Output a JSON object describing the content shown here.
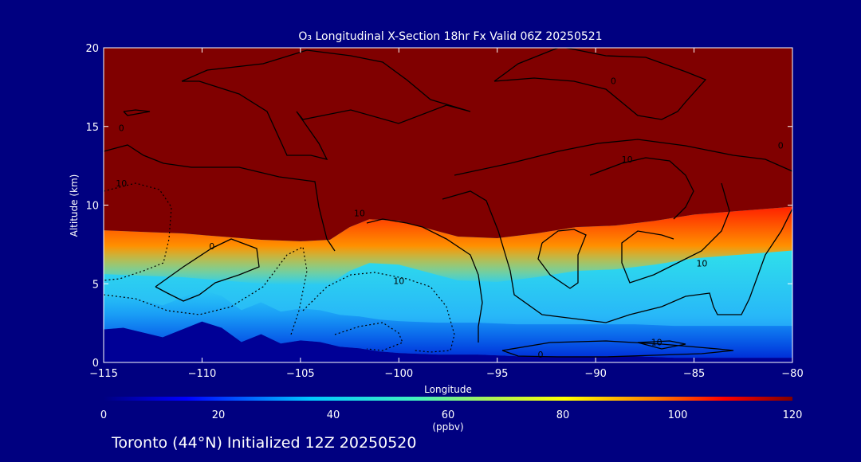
{
  "chart_data": {
    "type": "heatmap",
    "title": "O₃ Longitudinal X-Section 18hr  Fx Valid 06Z 20250521",
    "xlabel": "Longitude",
    "ylabel": "Altitude (km)",
    "xlim": [
      -115,
      -80
    ],
    "ylim": [
      0,
      20
    ],
    "x_ticks": [
      -115,
      -110,
      -105,
      -100,
      -95,
      -90,
      -85,
      -80
    ],
    "x_tick_labels": [
      "−115",
      "−110",
      "−105",
      "−100",
      "−95",
      "−90",
      "−85",
      "−80"
    ],
    "y_ticks": [
      0,
      5,
      10,
      15,
      20
    ],
    "y_tick_labels": [
      "0",
      "5",
      "10",
      "15",
      "20"
    ],
    "colorbar": {
      "min": 0,
      "max": 120,
      "unit": "(ppbv)",
      "ticks": [
        0,
        20,
        40,
        60,
        80,
        100,
        120
      ],
      "tick_labels": [
        "0",
        "20",
        "40",
        "60",
        "80",
        "100",
        "120"
      ]
    },
    "stratosphere_boundary": {
      "description_note": "",
      "x": [
        -115,
        -113,
        -111,
        -109,
        -107,
        -105,
        -103.5,
        -102.5,
        -101.5,
        -100,
        -98.5,
        -97,
        -95,
        -93,
        -91,
        -89,
        -87,
        -85,
        -83,
        -81,
        -80
      ],
      "y": [
        8.4,
        8.3,
        8.2,
        8.0,
        7.8,
        7.7,
        7.8,
        8.6,
        9.1,
        9.0,
        8.5,
        8.0,
        7.9,
        8.2,
        8.6,
        8.7,
        9.0,
        9.4,
        9.6,
        9.8,
        9.9
      ]
    },
    "surface_terrain": {
      "x": [
        -115,
        -114,
        -112,
        -110,
        -109,
        -108,
        -107,
        -106,
        -105,
        -104,
        -103,
        -102,
        -101,
        -100,
        -98,
        -96,
        -94,
        -92,
        -90,
        -88,
        -86,
        -84,
        -82,
        -80
      ],
      "y": [
        2.1,
        2.2,
        1.6,
        2.6,
        2.2,
        1.3,
        1.8,
        1.2,
        1.4,
        1.3,
        1.0,
        0.9,
        0.7,
        0.6,
        0.5,
        0.5,
        0.4,
        0.4,
        0.4,
        0.4,
        0.3,
        0.3,
        0.3,
        0.3
      ]
    },
    "contour_labels": [
      {
        "text": "0",
        "x": -114.1,
        "y": 14.7
      },
      {
        "text": "10",
        "x": -114.1,
        "y": 11.2
      },
      {
        "text": "0",
        "x": -109.5,
        "y": 7.2
      },
      {
        "text": "10",
        "x": -102,
        "y": 9.3
      },
      {
        "text": "10",
        "x": -100,
        "y": 5.0
      },
      {
        "text": "0",
        "x": -89.1,
        "y": 17.7
      },
      {
        "text": "10",
        "x": -88.4,
        "y": 12.7
      },
      {
        "text": "10",
        "x": -84.6,
        "y": 6.1
      },
      {
        "text": "10",
        "x": -86.9,
        "y": 1.1
      },
      {
        "text": "0",
        "x": -92.8,
        "y": 0.3
      },
      {
        "text": "0",
        "x": -80.6,
        "y": 13.6
      }
    ],
    "grid": false,
    "legend": "colorbar-bottom"
  },
  "footer": {
    "caption": "Toronto (44°N) Initialized 12Z 20250520"
  },
  "colors": {
    "background": "#000080",
    "stratosphere": "#800000",
    "terrain": "#000096",
    "contour": "#000000"
  }
}
